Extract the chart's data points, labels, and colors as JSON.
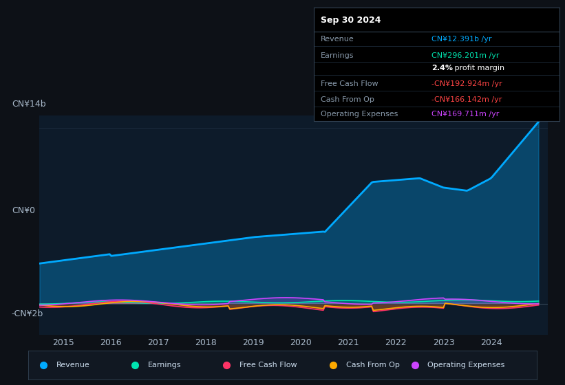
{
  "background_color": "#0d1117",
  "plot_bg_color": "#0d1b2a",
  "y_label_top": "CN¥14b",
  "y_label_zero": "CN¥0",
  "y_label_neg": "-CN¥2b",
  "x_ticks": [
    2015,
    2016,
    2017,
    2018,
    2019,
    2020,
    2021,
    2022,
    2023,
    2024
  ],
  "ylim": [
    -2500000000.0,
    15000000000.0
  ],
  "xlim": [
    2014.5,
    2025.2
  ],
  "colors": {
    "revenue": "#00aaff",
    "earnings": "#00e5b0",
    "free_cash_flow": "#ff3366",
    "cash_from_op": "#ffaa00",
    "operating_expenses": "#cc44ff"
  },
  "legend": [
    {
      "label": "Revenue",
      "color": "#00aaff"
    },
    {
      "label": "Earnings",
      "color": "#00e5b0"
    },
    {
      "label": "Free Cash Flow",
      "color": "#ff3366"
    },
    {
      "label": "Cash From Op",
      "color": "#ffaa00"
    },
    {
      "label": "Operating Expenses",
      "color": "#cc44ff"
    }
  ],
  "info_box": {
    "title": "Sep 30 2024",
    "rows": [
      {
        "label": "Revenue",
        "value": "CN¥12.391b /yr",
        "value_color": "#00aaff"
      },
      {
        "label": "Earnings",
        "value": "CN¥296.201m /yr",
        "value_color": "#00e5b0"
      },
      {
        "label": "",
        "value": "profit margin",
        "value_color": "#ffffff",
        "bold_part": "2.4%"
      },
      {
        "label": "Free Cash Flow",
        "value": "-CN¥192.924m /yr",
        "value_color": "#ff4444"
      },
      {
        "label": "Cash From Op",
        "value": "-CN¥166.142m /yr",
        "value_color": "#ff4444"
      },
      {
        "label": "Operating Expenses",
        "value": "CN¥169.711m /yr",
        "value_color": "#cc44ff"
      }
    ]
  }
}
